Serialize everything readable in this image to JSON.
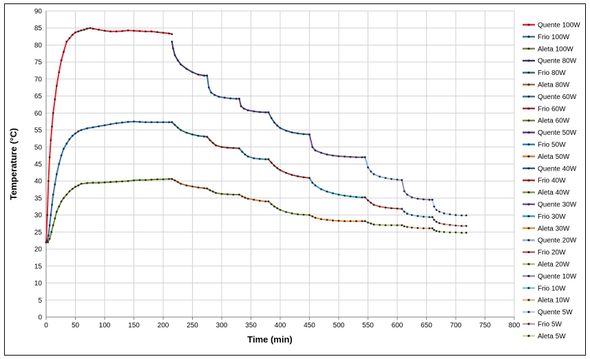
{
  "chart_data": {
    "type": "line",
    "xlabel": "Time (min)",
    "ylabel": "Temperature (°C)",
    "xlim": [
      0,
      800
    ],
    "ylim": [
      0,
      90
    ],
    "x_ticks": [
      0,
      50,
      100,
      150,
      200,
      250,
      300,
      350,
      400,
      450,
      500,
      550,
      600,
      650,
      700,
      750,
      800
    ],
    "y_ticks": [
      0,
      5,
      10,
      15,
      20,
      25,
      30,
      35,
      40,
      45,
      50,
      55,
      60,
      65,
      70,
      75,
      80,
      85,
      90
    ],
    "grid": true,
    "legend_position": "right",
    "series": [
      {
        "name": "Quente 100W",
        "color": "#e8202a",
        "x": [
          0,
          2,
          4,
          6,
          8,
          10,
          12,
          15,
          18,
          22,
          26,
          30,
          35,
          40,
          45,
          50,
          55,
          60,
          65,
          70,
          75,
          80,
          90,
          100,
          110,
          120,
          130,
          140,
          150,
          160,
          170,
          180,
          190,
          200,
          210,
          215
        ],
        "y": [
          22,
          30,
          40,
          47,
          52,
          56,
          60,
          64,
          68,
          72,
          75.5,
          78,
          81,
          82,
          83,
          83.7,
          84,
          84.3,
          84.5,
          84.8,
          85,
          84.8,
          84.5,
          84.2,
          84,
          84,
          84.1,
          84.3,
          84.2,
          84.1,
          84,
          84,
          83.8,
          83.6,
          83.4,
          83.2
        ]
      },
      {
        "name": "Frio 100W",
        "color": "#2e75b6",
        "x": [
          0,
          2,
          4,
          6,
          8,
          10,
          12,
          15,
          18,
          22,
          26,
          30,
          35,
          40,
          45,
          50,
          55,
          60,
          70,
          80,
          90,
          100,
          110,
          120,
          130,
          140,
          150,
          160,
          170,
          180,
          190,
          200,
          210,
          215
        ],
        "y": [
          22,
          22.5,
          24,
          27,
          30,
          33,
          36,
          39,
          42,
          45,
          47.5,
          49.5,
          51,
          52.3,
          53.3,
          54,
          54.6,
          55,
          55.5,
          55.8,
          56.1,
          56.4,
          56.7,
          57,
          57.2,
          57.4,
          57.5,
          57.4,
          57.3,
          57.3,
          57.3,
          57.3,
          57.3,
          57.3
        ]
      },
      {
        "name": "Aleta 100W",
        "color": "#6e8a2d",
        "x": [
          0,
          3,
          6,
          9,
          12,
          15,
          18,
          22,
          26,
          30,
          35,
          40,
          45,
          50,
          55,
          60,
          70,
          80,
          90,
          100,
          110,
          120,
          130,
          140,
          150,
          160,
          170,
          180,
          190,
          200,
          210,
          215
        ],
        "y": [
          22,
          22,
          23,
          25,
          27,
          29,
          31,
          32.5,
          34,
          35,
          36,
          37,
          37.7,
          38.3,
          38.7,
          39.2,
          39.4,
          39.5,
          39.5,
          39.6,
          39.7,
          39.8,
          39.9,
          40,
          40.2,
          40.3,
          40.3,
          40.4,
          40.5,
          40.5,
          40.6,
          40.6
        ]
      },
      {
        "name": "Quente 80W",
        "color": "#403370",
        "x": [
          215,
          217,
          220,
          225,
          230,
          240,
          250,
          260,
          270,
          275
        ],
        "y": [
          81,
          79,
          77,
          75.5,
          74.3,
          73,
          72,
          71.3,
          71,
          71
        ]
      },
      {
        "name": "Frio 80W",
        "color": "#1f7470",
        "x": [
          215,
          220,
          225,
          230,
          240,
          250,
          260,
          270,
          275
        ],
        "y": [
          57.3,
          56.5,
          55.7,
          55,
          54.2,
          53.7,
          53.3,
          53.1,
          53
        ]
      },
      {
        "name": "Aleta 80W",
        "color": "#b0672a",
        "x": [
          215,
          220,
          225,
          230,
          240,
          250,
          260,
          270,
          275
        ],
        "y": [
          40.6,
          40.2,
          39.7,
          39.2,
          38.7,
          38.4,
          38.1,
          37.9,
          37.8
        ]
      },
      {
        "name": "Quente 60W",
        "color": "#3b6ca8",
        "x": [
          275,
          278,
          282,
          288,
          295,
          305,
          315,
          325,
          330
        ],
        "y": [
          71,
          67.5,
          66,
          65.3,
          64.8,
          64.5,
          64.3,
          64.2,
          64.2
        ]
      },
      {
        "name": "Frio 60W",
        "color": "#9c2f2f",
        "x": [
          275,
          280,
          285,
          290,
          300,
          310,
          320,
          330
        ],
        "y": [
          53,
          52,
          51.2,
          50.5,
          50,
          49.8,
          49.7,
          49.6
        ]
      },
      {
        "name": "Aleta 60W",
        "color": "#6f8d2e",
        "x": [
          275,
          280,
          285,
          290,
          300,
          310,
          320,
          330
        ],
        "y": [
          37.8,
          37.3,
          36.9,
          36.5,
          36.2,
          36.1,
          36,
          36
        ]
      },
      {
        "name": "Quente 50W",
        "color": "#5a3f82",
        "x": [
          330,
          333,
          338,
          345,
          355,
          365,
          375,
          380
        ],
        "y": [
          64.2,
          62,
          61.3,
          60.8,
          60.5,
          60.3,
          60.2,
          60.2
        ]
      },
      {
        "name": "Frio 50W",
        "color": "#1c8aa3",
        "x": [
          330,
          335,
          340,
          345,
          355,
          365,
          375,
          380
        ],
        "y": [
          49.6,
          48.6,
          47.8,
          47.2,
          46.7,
          46.5,
          46.4,
          46.4
        ]
      },
      {
        "name": "Aleta 50W",
        "color": "#e07b2a",
        "x": [
          330,
          335,
          340,
          345,
          355,
          365,
          375,
          380
        ],
        "y": [
          36,
          35.5,
          35.1,
          34.8,
          34.5,
          34.2,
          34,
          34
        ]
      },
      {
        "name": "Quente 40W",
        "color": "#2f5c93",
        "x": [
          380,
          385,
          390,
          395,
          400,
          410,
          420,
          430,
          440,
          450
        ],
        "y": [
          60.2,
          58.5,
          57.2,
          56.3,
          55.6,
          54.8,
          54.3,
          54,
          53.8,
          53.7
        ]
      },
      {
        "name": "Frio 40W",
        "color": "#a3332f",
        "x": [
          380,
          385,
          390,
          395,
          400,
          410,
          420,
          430,
          440,
          450
        ],
        "y": [
          46.4,
          45.4,
          44.5,
          43.8,
          43.2,
          42.4,
          41.8,
          41.4,
          41.1,
          40.9
        ]
      },
      {
        "name": "Aleta 40W",
        "color": "#7fa13a",
        "x": [
          380,
          385,
          390,
          395,
          400,
          410,
          420,
          430,
          440,
          450
        ],
        "y": [
          34,
          33.2,
          32.5,
          32,
          31.5,
          30.9,
          30.5,
          30.2,
          30.1,
          30
        ]
      },
      {
        "name": "Quente 30W",
        "color": "#6c4e9c",
        "x": [
          450,
          455,
          460,
          470,
          480,
          490,
          500,
          510,
          520,
          530,
          540,
          545
        ],
        "y": [
          53.7,
          50,
          49,
          48.3,
          47.8,
          47.5,
          47.3,
          47.2,
          47.1,
          47,
          47,
          47
        ]
      },
      {
        "name": "Frio 30W",
        "color": "#29a3c2",
        "x": [
          450,
          455,
          460,
          470,
          480,
          490,
          500,
          510,
          520,
          530,
          540,
          545
        ],
        "y": [
          40.9,
          39.5,
          38.7,
          37.6,
          36.9,
          36.4,
          36,
          35.7,
          35.5,
          35.3,
          35.2,
          35.2
        ]
      },
      {
        "name": "Aleta 30W",
        "color": "#f08c2e",
        "x": [
          450,
          455,
          460,
          470,
          480,
          490,
          500,
          510,
          520,
          530,
          540,
          545
        ],
        "y": [
          30,
          29.6,
          29.2,
          28.8,
          28.6,
          28.4,
          28.3,
          28.2,
          28.2,
          28.2,
          28.2,
          28.2
        ]
      },
      {
        "name": "Quente 20W",
        "color": "#8faed6",
        "x": [
          545,
          550,
          555,
          560,
          570,
          580,
          590,
          600,
          608
        ],
        "y": [
          47,
          44,
          42.8,
          42,
          41.3,
          40.9,
          40.6,
          40.4,
          40.3
        ]
      },
      {
        "name": "Frio 20W",
        "color": "#c25a55",
        "x": [
          545,
          550,
          555,
          560,
          570,
          580,
          590,
          600,
          608
        ],
        "y": [
          35.2,
          34.3,
          33.6,
          33,
          32.5,
          32.2,
          32,
          31.9,
          31.8
        ]
      },
      {
        "name": "Aleta 20W",
        "color": "#a8c36a",
        "x": [
          545,
          550,
          555,
          560,
          570,
          580,
          590,
          600,
          608
        ],
        "y": [
          28.2,
          27.8,
          27.5,
          27.2,
          27.1,
          27,
          27,
          27,
          27
        ]
      },
      {
        "name": "Quente 10W",
        "color": "#9d86c2",
        "x": [
          608,
          612,
          617,
          625,
          635,
          645,
          655,
          660
        ],
        "y": [
          40.3,
          37,
          36,
          35.2,
          34.8,
          34.6,
          34.5,
          34.5
        ]
      },
      {
        "name": "Frio 10W",
        "color": "#7cc6dc",
        "x": [
          608,
          612,
          617,
          625,
          635,
          645,
          655,
          660
        ],
        "y": [
          31.8,
          31,
          30.4,
          30,
          29.7,
          29.5,
          29.4,
          29.4
        ]
      },
      {
        "name": "Aleta 10W",
        "color": "#f7b17a",
        "x": [
          608,
          612,
          617,
          625,
          635,
          645,
          655,
          660
        ],
        "y": [
          27,
          26.7,
          26.5,
          26.3,
          26.2,
          26.1,
          26.1,
          26.1
        ]
      },
      {
        "name": "Quente 5W",
        "color": "#b9cbe6",
        "x": [
          660,
          663,
          667,
          672,
          680,
          690,
          700,
          710,
          718
        ],
        "y": [
          34.5,
          32.5,
          31.5,
          31,
          30.5,
          30.2,
          30,
          29.9,
          29.9
        ]
      },
      {
        "name": "Frio 5W",
        "color": "#d79a97",
        "x": [
          660,
          663,
          667,
          672,
          680,
          690,
          700,
          710,
          718
        ],
        "y": [
          29.4,
          28.6,
          28,
          27.6,
          27.3,
          27.1,
          26.9,
          26.8,
          26.8
        ]
      },
      {
        "name": "Aleta 5W",
        "color": "#c6da9a",
        "x": [
          660,
          663,
          667,
          672,
          680,
          690,
          700,
          710,
          718
        ],
        "y": [
          26.1,
          25.6,
          25.3,
          25.1,
          25,
          24.9,
          24.9,
          24.8,
          24.8
        ]
      }
    ]
  }
}
